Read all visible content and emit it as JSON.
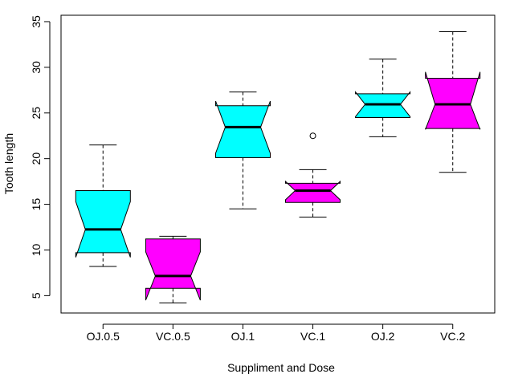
{
  "chart_data": {
    "type": "boxplot",
    "title": "",
    "xlabel": "Suppliment and Dose",
    "ylabel": "Tooth length",
    "ylim": [
      3.1,
      35.7
    ],
    "yticks": [
      5,
      10,
      15,
      20,
      25,
      30,
      35
    ],
    "notched": true,
    "grid": false,
    "groups": [
      {
        "label": "OJ.0.5",
        "color": "#00ffff",
        "min": 8.2,
        "q1": 9.7,
        "median": 12.25,
        "q3": 16.5,
        "max": 21.5,
        "notch_low": 9.2,
        "notch_high": 15.3,
        "outliers": []
      },
      {
        "label": "VC.0.5",
        "color": "#ff00ff",
        "min": 4.2,
        "q1": 5.8,
        "median": 7.15,
        "q3": 11.2,
        "max": 11.5,
        "notch_low": 4.5,
        "notch_high": 9.8,
        "outliers": []
      },
      {
        "label": "OJ.1",
        "color": "#00ffff",
        "min": 14.5,
        "q1": 20.1,
        "median": 23.45,
        "q3": 25.8,
        "max": 27.3,
        "notch_low": 20.6,
        "notch_high": 26.3,
        "outliers": []
      },
      {
        "label": "VC.1",
        "color": "#ff00ff",
        "min": 13.6,
        "q1": 15.2,
        "median": 16.5,
        "q3": 17.3,
        "max": 18.8,
        "notch_low": 15.5,
        "notch_high": 17.5,
        "outliers": [
          22.5
        ]
      },
      {
        "label": "OJ.2",
        "color": "#00ffff",
        "min": 22.4,
        "q1": 24.5,
        "median": 25.95,
        "q3": 27.1,
        "max": 30.9,
        "notch_low": 24.6,
        "notch_high": 27.3,
        "outliers": []
      },
      {
        "label": "VC.2",
        "color": "#ff00ff",
        "min": 18.5,
        "q1": 23.3,
        "median": 25.95,
        "q3": 28.8,
        "max": 33.9,
        "notch_low": 23.2,
        "notch_high": 29.5,
        "outliers": []
      }
    ]
  }
}
